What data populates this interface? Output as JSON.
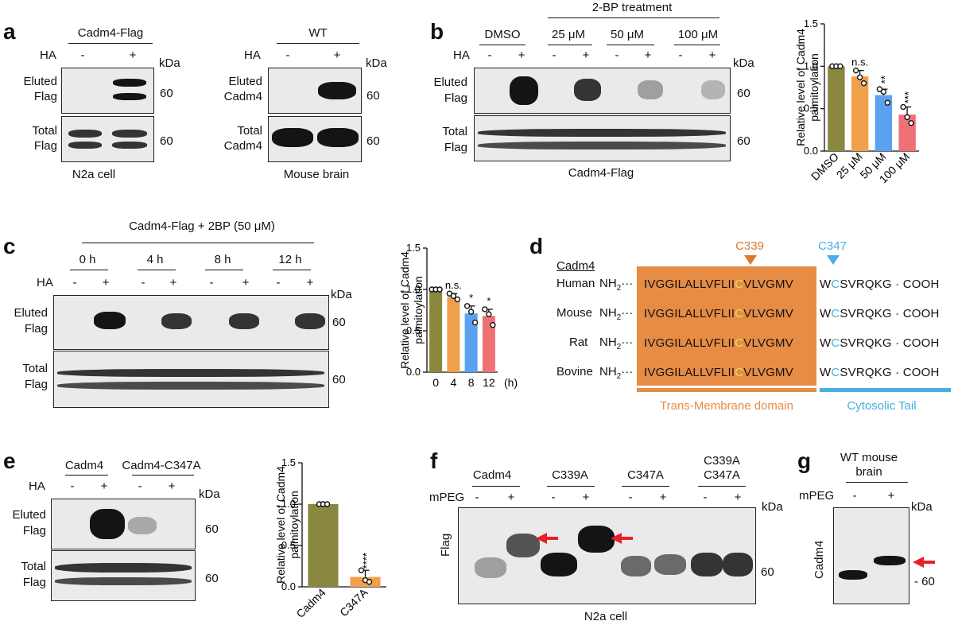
{
  "panels": {
    "a": "a",
    "b": "b",
    "c": "c",
    "d": "d",
    "e": "e",
    "f": "f",
    "g": "g"
  },
  "common": {
    "minus": "-",
    "plus": "+",
    "kda": "kDa",
    "mw60": "60",
    "ha": "HA",
    "mpeg": "mPEG",
    "eluted": "Eluted",
    "total": "Total",
    "flag": "Flag",
    "cadm4": "Cadm4",
    "n2a": "N2a cell",
    "ylabel1": "Relative level of Cadm4",
    "ylabel2": "palmitoylation"
  },
  "a": {
    "left_title": "Cadm4-Flag",
    "right_title": "WT",
    "left_caption": "N2a cell",
    "right_caption": "Mouse brain"
  },
  "b": {
    "dmso": "DMSO",
    "treat": "2-BP treatment",
    "conc": [
      "25 μM",
      "50 μM",
      "100 μM"
    ],
    "caption": "Cadm4-Flag"
  },
  "c": {
    "title": "Cadm4-Flag + 2BP (50 μM)",
    "times": [
      "0 h",
      "4 h",
      "8 h",
      "12 h"
    ],
    "xunit": "(h)"
  },
  "d": {
    "c339": "C339",
    "c347": "C347",
    "header": "Cadm4",
    "species": [
      "Human",
      "Mouse",
      "Rat",
      "Bovine"
    ],
    "nh2": "NH",
    "sub2": "2",
    "dots": "···",
    "tm_a": "IVGGILALLVFLII",
    "tm_c": "C",
    "tm_b": "VLVGMV",
    "w": "W",
    "c": "C",
    "tail": "SVRQKG",
    "cooh": "· COOH",
    "tm_label": "Trans-Membrane domain",
    "tail_label": "Cytosolic Tail"
  },
  "e": {
    "lanes": [
      "Cadm4",
      "Cadm4-C347A"
    ]
  },
  "f": {
    "lanes": [
      "Cadm4",
      "C339A",
      "C347A",
      "C339A",
      "C347A"
    ],
    "caption": "N2a cell"
  },
  "g": {
    "title1": "WT mouse",
    "title2": "brain"
  },
  "chart_data": [
    {
      "type": "bar",
      "panel": "b",
      "categories": [
        "DMSO",
        "25 μM",
        "50 μM",
        "100 μM"
      ],
      "values": [
        1.0,
        0.88,
        0.66,
        0.43
      ],
      "points": [
        [
          1,
          1,
          1
        ],
        [
          0.95,
          0.87,
          0.8
        ],
        [
          0.73,
          0.7,
          0.57
        ],
        [
          0.52,
          0.4,
          0.33
        ]
      ],
      "colors": [
        "#8a873f",
        "#f0a04b",
        "#5aa2ef",
        "#ee7176"
      ],
      "ylim": [
        0,
        1.5
      ],
      "yticks": [
        "0.0",
        "0.5",
        "1.0",
        "1.5"
      ],
      "sig": [
        "",
        "n.s.",
        "**",
        "***"
      ],
      "ylabel": "Relative level of Cadm4 palmitoylation"
    },
    {
      "type": "bar",
      "panel": "c",
      "categories": [
        "0",
        "4",
        "8",
        "12"
      ],
      "values": [
        1.0,
        0.91,
        0.71,
        0.68
      ],
      "points": [
        [
          1,
          1,
          1
        ],
        [
          0.95,
          0.92,
          0.88
        ],
        [
          0.8,
          0.73,
          0.6
        ],
        [
          0.76,
          0.7,
          0.57
        ]
      ],
      "colors": [
        "#8a873f",
        "#f0a04b",
        "#5aa2ef",
        "#ee7176"
      ],
      "ylim": [
        0,
        1.5
      ],
      "yticks": [
        "0.0",
        "0.5",
        "1.0",
        "1.5"
      ],
      "sig": [
        "",
        "n.s.",
        "*",
        "*"
      ],
      "xunit": "(h)",
      "ylabel": "Relative level of Cadm4 palmitoylation"
    },
    {
      "type": "bar",
      "panel": "e",
      "categories": [
        "Cadm4",
        "C347A"
      ],
      "values": [
        1.0,
        0.12
      ],
      "points": [
        [
          1,
          1,
          1
        ],
        [
          0.2,
          0.08,
          0.06
        ]
      ],
      "colors": [
        "#8a873f",
        "#f0a04b"
      ],
      "ylim": [
        0,
        1.5
      ],
      "yticks": [
        "0.0",
        "0.5",
        "1.0",
        "1.5"
      ],
      "sig": [
        "",
        "****"
      ],
      "ylabel": "Relative level of Cadm4 palmitoylation"
    }
  ],
  "colors": {
    "orange": "#e68c45",
    "cyan": "#4aaee4",
    "arrow": "#e8202a"
  }
}
